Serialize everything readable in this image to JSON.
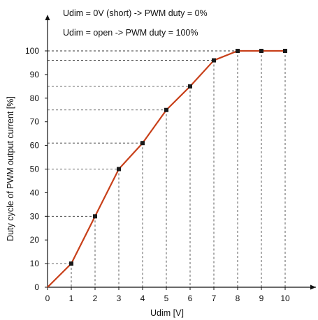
{
  "chart_data": {
    "type": "line",
    "title": "",
    "xlabel": "Udim [V]",
    "ylabel": "Duty cycle of PWM output current [%]",
    "annotations": [
      "Udim = 0V (short) -> PWM duty = 0%",
      "Udim = open -> PWM duty = 100%"
    ],
    "x_ticks": [
      0,
      1,
      2,
      3,
      4,
      5,
      6,
      7,
      8,
      9,
      10
    ],
    "y_ticks": [
      0,
      10,
      20,
      30,
      40,
      50,
      60,
      70,
      80,
      90,
      100
    ],
    "xlim": [
      0,
      10
    ],
    "ylim": [
      0,
      100
    ],
    "grid": false,
    "guide_lines": "dashed lines from each point to both axes",
    "series": [
      {
        "x": [
          0,
          1,
          2,
          3,
          4,
          5,
          6,
          7,
          8,
          9,
          10
        ],
        "y": [
          0,
          10,
          30,
          50,
          61,
          75,
          85,
          96,
          100,
          100,
          100
        ],
        "color": "#c8401a",
        "marker_color": "#1a1a1a"
      }
    ]
  }
}
